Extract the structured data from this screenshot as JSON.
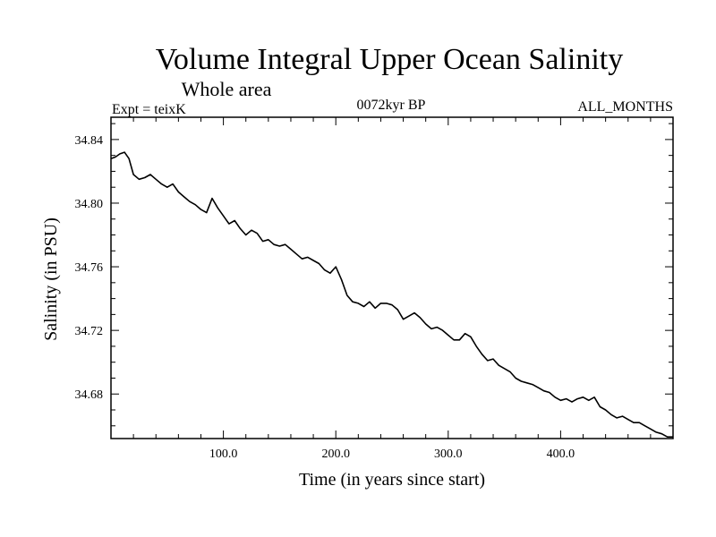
{
  "chart_data": {
    "type": "line",
    "title": "Volume Integral Upper Ocean Salinity",
    "subtitle": "Whole area",
    "experiment": "Expt = teixK",
    "period": "0072kyr BP",
    "months": "ALL_MONTHS",
    "xlabel": "Time (in years since start)",
    "ylabel": "Salinity (in PSU)",
    "xlim": [
      0,
      500
    ],
    "ylim": [
      34.652,
      34.854
    ],
    "x_ticks": [
      {
        "value": 100,
        "label": "100.0"
      },
      {
        "value": 200,
        "label": "200.0"
      },
      {
        "value": 300,
        "label": "300.0"
      },
      {
        "value": 400,
        "label": "400.0"
      }
    ],
    "y_ticks": [
      {
        "value": 34.68,
        "label": "34.68"
      },
      {
        "value": 34.72,
        "label": "34.72"
      },
      {
        "value": 34.76,
        "label": "34.76"
      },
      {
        "value": 34.8,
        "label": "34.80"
      },
      {
        "value": 34.84,
        "label": "34.84"
      }
    ],
    "grid": false,
    "series": [
      {
        "color": "#000000",
        "x": [
          0,
          4,
          8,
          12,
          16,
          20,
          25,
          30,
          35,
          40,
          45,
          50,
          55,
          60,
          65,
          70,
          75,
          80,
          85,
          90,
          95,
          100,
          105,
          110,
          115,
          120,
          125,
          130,
          135,
          140,
          145,
          150,
          155,
          160,
          165,
          170,
          175,
          180,
          185,
          190,
          195,
          200,
          205,
          210,
          215,
          220,
          225,
          230,
          235,
          240,
          245,
          250,
          255,
          260,
          265,
          270,
          275,
          280,
          285,
          290,
          295,
          300,
          305,
          310,
          315,
          320,
          325,
          330,
          335,
          340,
          345,
          350,
          355,
          360,
          365,
          370,
          375,
          380,
          385,
          390,
          395,
          400,
          405,
          410,
          415,
          420,
          425,
          430,
          435,
          440,
          445,
          450,
          455,
          460,
          465,
          470,
          475,
          480,
          485,
          490,
          495,
          500
        ],
        "y": [
          34.828,
          34.829,
          34.831,
          34.832,
          34.828,
          34.818,
          34.815,
          34.816,
          34.818,
          34.815,
          34.812,
          34.81,
          34.812,
          34.807,
          34.804,
          34.801,
          34.799,
          34.796,
          34.794,
          34.803,
          34.797,
          34.792,
          34.787,
          34.789,
          34.784,
          34.78,
          34.783,
          34.781,
          34.776,
          34.777,
          34.774,
          34.773,
          34.774,
          34.771,
          34.768,
          34.765,
          34.766,
          34.764,
          34.762,
          34.758,
          34.756,
          34.76,
          34.752,
          34.742,
          34.738,
          34.737,
          34.735,
          34.738,
          34.734,
          34.737,
          34.737,
          34.736,
          34.733,
          34.727,
          34.729,
          34.731,
          34.728,
          34.724,
          34.721,
          34.722,
          34.72,
          34.717,
          34.714,
          34.714,
          34.718,
          34.716,
          34.71,
          34.705,
          34.701,
          34.702,
          34.698,
          34.696,
          34.694,
          34.69,
          34.688,
          34.687,
          34.686,
          34.684,
          34.682,
          34.681,
          34.678,
          34.676,
          34.677,
          34.675,
          34.677,
          34.678,
          34.676,
          34.678,
          34.672,
          34.67,
          34.667,
          34.665,
          34.666,
          34.664,
          34.662,
          34.662,
          34.66,
          34.658,
          34.656,
          34.655,
          34.653,
          34.653
        ]
      }
    ]
  }
}
